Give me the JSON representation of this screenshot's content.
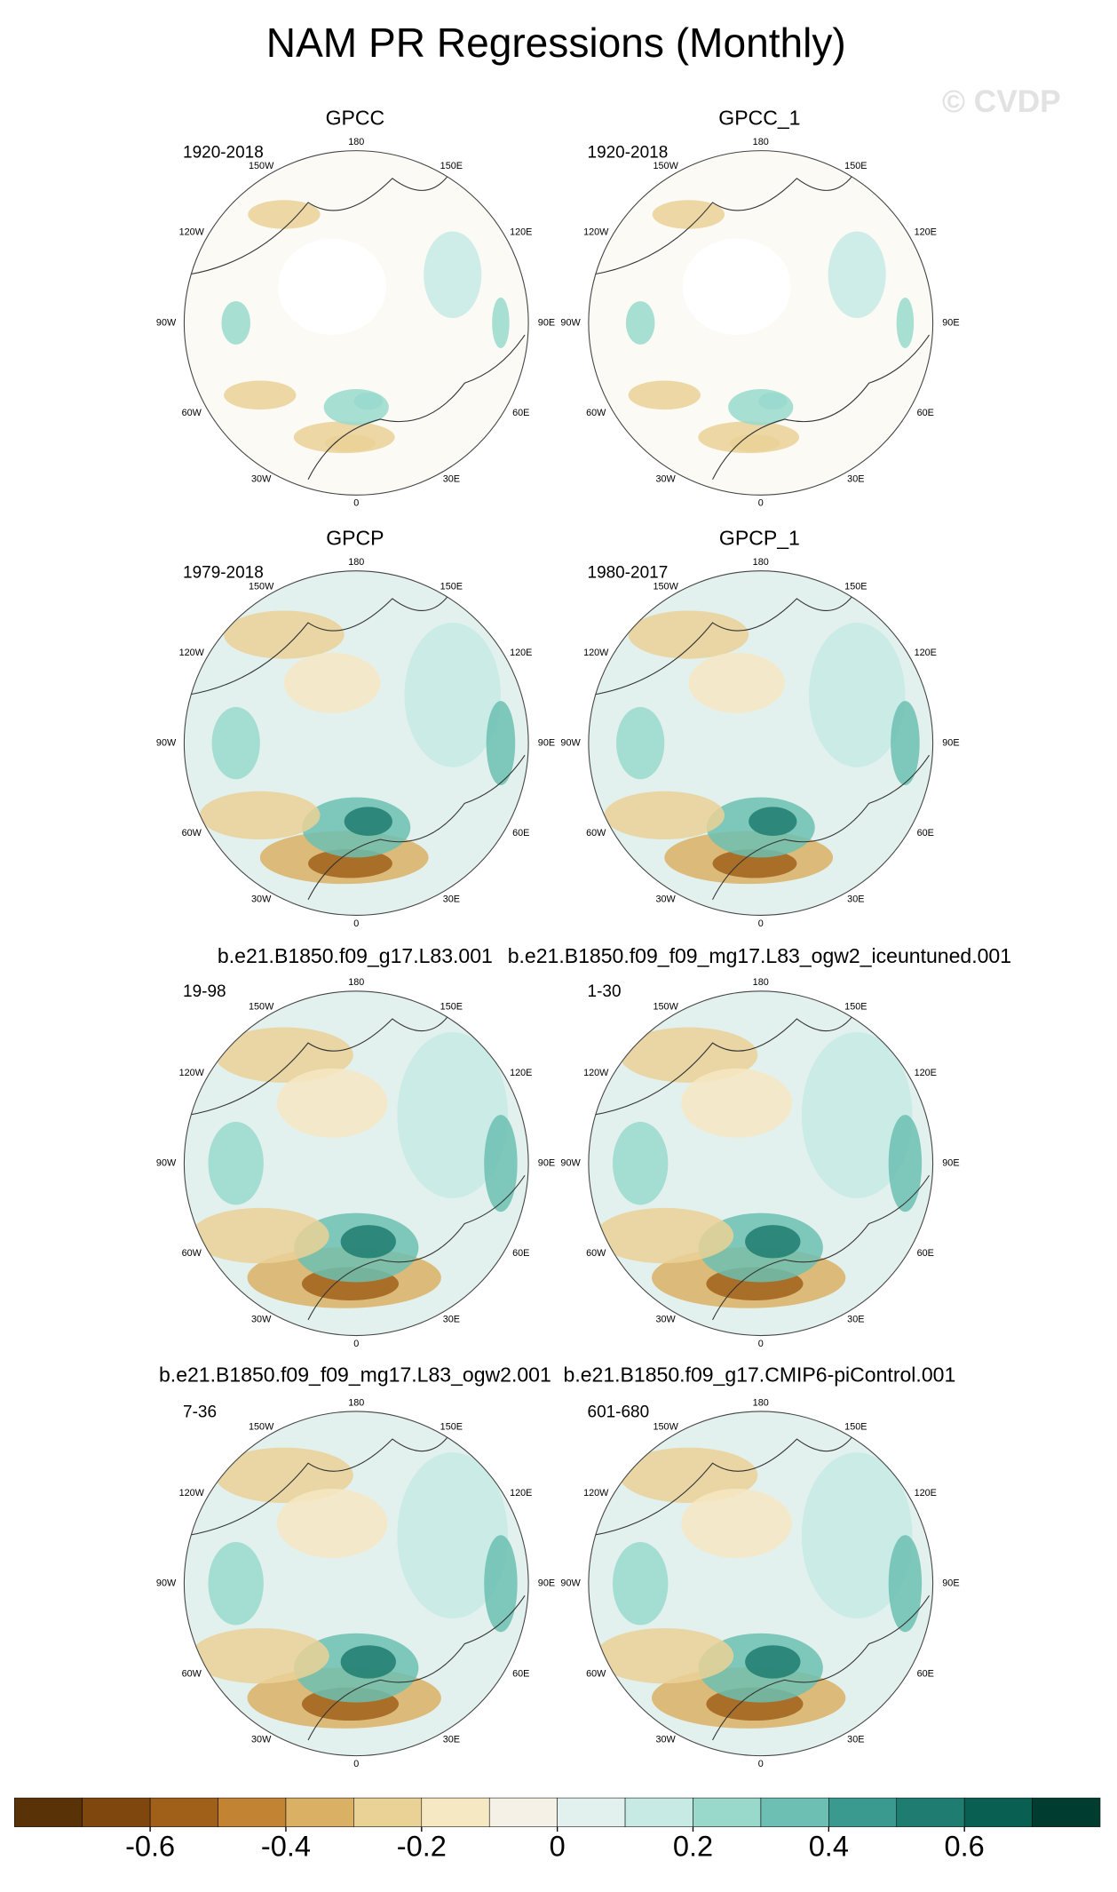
{
  "header": {
    "title": "NAM PR Regressions (Monthly)",
    "watermark": "© CVDP"
  },
  "longitude_labels": [
    "180",
    "150E",
    "120E",
    "90E",
    "60E",
    "30E",
    "0",
    "30W",
    "60W",
    "90W",
    "120W",
    "150W"
  ],
  "panels": [
    {
      "title": "GPCC",
      "period": "1920-2018"
    },
    {
      "title": "GPCC_1",
      "period": "1920-2018"
    },
    {
      "title": "GPCP",
      "period": "1979-2018"
    },
    {
      "title": "GPCP_1",
      "period": "1980-2017"
    },
    {
      "title": "b.e21.B1850.f09_g17.L83.001",
      "period": "19-98"
    },
    {
      "title": "b.e21.B1850.f09_f09_mg17.L83_ogw2_iceuntuned.001",
      "period": "1-30"
    },
    {
      "title": "b.e21.B1850.f09_f09_mg17.L83_ogw2.001",
      "period": "7-36"
    },
    {
      "title": "b.e21.B1850.f09_g17.CMIP6-piControl.001",
      "period": "601-680"
    }
  ],
  "colorbar": {
    "range": [
      -0.8,
      0.8
    ],
    "colors": [
      "#5a3208",
      "#7f470e",
      "#a0601a",
      "#c28432",
      "#dab064",
      "#ead196",
      "#f6e8c3",
      "#f5f1e6",
      "#e3f1ee",
      "#c7eae5",
      "#99d9cc",
      "#6cbfb2",
      "#3a9a8f",
      "#1e7c70",
      "#0a5f53",
      "#003c30"
    ],
    "ticks": [
      -0.6,
      -0.4,
      -0.2,
      0,
      0.2,
      0.4,
      0.6
    ]
  }
}
